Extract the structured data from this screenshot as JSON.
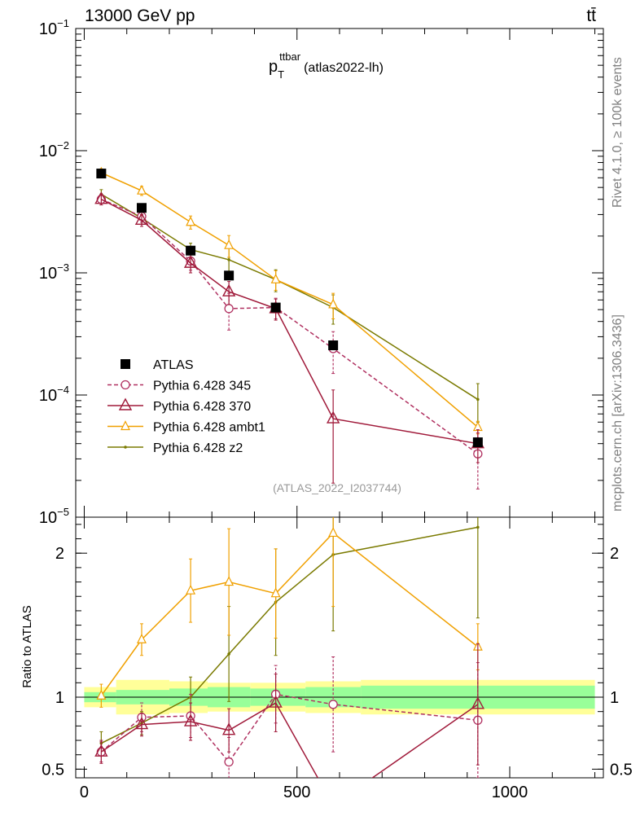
{
  "header": {
    "left": "13000 GeV pp",
    "right": "tt̄",
    "side_top": "Rivet 4.1.0, ≥ 100k events",
    "side_bottom": "mcplots.cern.ch [arXiv:1306.3436]"
  },
  "chart_data": {
    "type": "line",
    "title_main": "p",
    "title_sub": "T",
    "title_sup": "ttbar",
    "title_suffix": "(atlas2022-lh)",
    "analysis_label": "(ATLAS_2022_I2037744)",
    "x": [
      40,
      135,
      250,
      340,
      450,
      585,
      925
    ],
    "xlim": [
      -20,
      1220
    ],
    "x_ticks": [
      0,
      500,
      1000
    ],
    "x_tick_labels": [
      "0",
      "500",
      "1000"
    ],
    "top": {
      "scale": "log",
      "ylim": [
        1e-05,
        0.1
      ],
      "y_ticks": [
        {
          "base": "10",
          "exp": "−1",
          "value": 0.1
        },
        {
          "base": "10",
          "exp": "−2",
          "value": 0.01
        },
        {
          "base": "10",
          "exp": "−3",
          "value": 0.001
        },
        {
          "base": "10",
          "exp": "−4",
          "value": 0.0001
        },
        {
          "base": "10",
          "exp": "−5",
          "value": 1e-05
        }
      ]
    },
    "ratio": {
      "ylabel": "Ratio to ATLAS",
      "ylim": [
        0.44,
        2.25
      ],
      "y_ticks": [
        0.5,
        1,
        2
      ],
      "y_tick_labels": [
        "0.5",
        "1",
        "2"
      ],
      "bands": [
        {
          "x0": 0,
          "x1": 75,
          "inner": [
            0.965,
            1.035
          ],
          "outer": [
            0.93,
            1.07
          ]
        },
        {
          "x0": 75,
          "x1": 200,
          "inner": [
            0.95,
            1.05
          ],
          "outer": [
            0.88,
            1.12
          ]
        },
        {
          "x0": 200,
          "x1": 290,
          "inner": [
            0.94,
            1.06
          ],
          "outer": [
            0.89,
            1.11
          ]
        },
        {
          "x0": 290,
          "x1": 390,
          "inner": [
            0.93,
            1.07
          ],
          "outer": [
            0.9,
            1.1
          ]
        },
        {
          "x0": 390,
          "x1": 520,
          "inner": [
            0.94,
            1.06
          ],
          "outer": [
            0.9,
            1.1
          ]
        },
        {
          "x0": 520,
          "x1": 650,
          "inner": [
            0.93,
            1.07
          ],
          "outer": [
            0.89,
            1.11
          ]
        },
        {
          "x0": 650,
          "x1": 1200,
          "inner": [
            0.92,
            1.08
          ],
          "outer": [
            0.88,
            1.12
          ]
        }
      ]
    },
    "series": [
      {
        "name": "ATLAS",
        "color": "#000000",
        "marker": "square",
        "dash": false,
        "values": [
          0.0065,
          0.0034,
          0.00152,
          0.00095,
          0.00052,
          0.000255,
          4.1e-05
        ],
        "err_low": [
          0.0065,
          0.0034,
          0.00152,
          0.00095,
          0.00052,
          0.000255,
          4.1e-05
        ],
        "err_high": [
          0.0065,
          0.0034,
          0.00152,
          0.00095,
          0.00052,
          0.000255,
          4.1e-05
        ],
        "ratio": [
          1,
          1,
          1,
          1,
          1,
          1,
          1
        ],
        "ratio_low": [
          1,
          1,
          1,
          1,
          1,
          1,
          1
        ],
        "ratio_high": [
          1,
          1,
          1,
          1,
          1,
          1,
          1
        ]
      },
      {
        "name": "Pythia 6.428 345",
        "color": "#b03060",
        "marker": "circle",
        "dash": true,
        "values": [
          0.004,
          0.0029,
          0.00125,
          0.00051,
          0.00052,
          0.00024,
          3.3e-05
        ],
        "err_low": [
          0.0036,
          0.0026,
          0.00105,
          0.00034,
          0.00042,
          0.00015,
          1.7e-05
        ],
        "err_high": [
          0.0044,
          0.0032,
          0.00145,
          0.00068,
          0.00062,
          0.00033,
          4.9e-05
        ],
        "ratio": [
          0.62,
          0.86,
          0.87,
          0.55,
          1.02,
          0.95,
          0.84
        ],
        "ratio_low": [
          0.55,
          0.76,
          0.72,
          0.38,
          0.82,
          0.62,
          0.44
        ],
        "ratio_high": [
          0.69,
          0.96,
          1.02,
          0.72,
          1.22,
          1.28,
          1.24
        ]
      },
      {
        "name": "Pythia 6.428 370",
        "color": "#a01a3a",
        "marker": "triangle",
        "dash": false,
        "values": [
          0.004,
          0.0027,
          0.0012,
          0.0007,
          0.00051,
          6.4e-05,
          4e-05
        ],
        "err_low": [
          0.0036,
          0.0024,
          0.001,
          0.00055,
          0.00041,
          1.9e-05,
          2.8e-05
        ],
        "err_high": [
          0.0044,
          0.003,
          0.0014,
          0.00085,
          0.00061,
          0.00011,
          5.2e-05
        ],
        "ratio": [
          0.62,
          0.81,
          0.83,
          0.77,
          0.96,
          0.25,
          0.95
        ],
        "ratio_low": [
          0.54,
          0.73,
          0.7,
          0.62,
          0.76,
          0.08,
          0.53
        ],
        "ratio_high": [
          0.7,
          0.89,
          0.96,
          0.92,
          1.16,
          0.42,
          1.37
        ]
      },
      {
        "name": "Pythia 6.428 ambt1",
        "color": "#f0a000",
        "marker": "triangle-small",
        "dash": false,
        "values": [
          0.0066,
          0.0047,
          0.0026,
          0.00168,
          0.00088,
          0.00055,
          5.45e-05
        ],
        "err_low": [
          0.0061,
          0.0043,
          0.00228,
          0.00134,
          0.00072,
          0.00042,
          4.8e-05
        ],
        "err_high": [
          0.0071,
          0.0051,
          0.00292,
          0.00202,
          0.00104,
          0.00068,
          6.1e-05
        ],
        "ratio": [
          1.01,
          1.4,
          1.74,
          1.8,
          1.72,
          2.14,
          1.35
        ],
        "ratio_low": [
          0.93,
          1.29,
          1.52,
          1.43,
          1.41,
          1.63,
          1.19
        ],
        "ratio_high": [
          1.09,
          1.51,
          1.96,
          2.17,
          2.03,
          2.65,
          1.51
        ]
      },
      {
        "name": "Pythia 6.428 z2",
        "color": "#7a7a00",
        "marker": "dot",
        "dash": false,
        "values": [
          0.0044,
          0.0028,
          0.00155,
          0.00128,
          0.00088,
          0.00052,
          9.2e-05
        ],
        "err_low": [
          0.004,
          0.0025,
          0.00135,
          0.00095,
          0.0007,
          0.00038,
          6e-05
        ],
        "err_high": [
          0.0048,
          0.0031,
          0.00175,
          0.00161,
          0.00106,
          0.00066,
          0.000124
        ],
        "ratio": [
          0.68,
          0.82,
          1.0,
          1.3,
          1.66,
          1.99,
          2.18
        ],
        "ratio_low": [
          0.6,
          0.74,
          0.86,
          0.97,
          1.29,
          1.46,
          1.55
        ],
        "ratio_high": [
          0.76,
          0.9,
          1.14,
          1.63,
          2.03,
          2.52,
          2.81
        ]
      }
    ]
  }
}
